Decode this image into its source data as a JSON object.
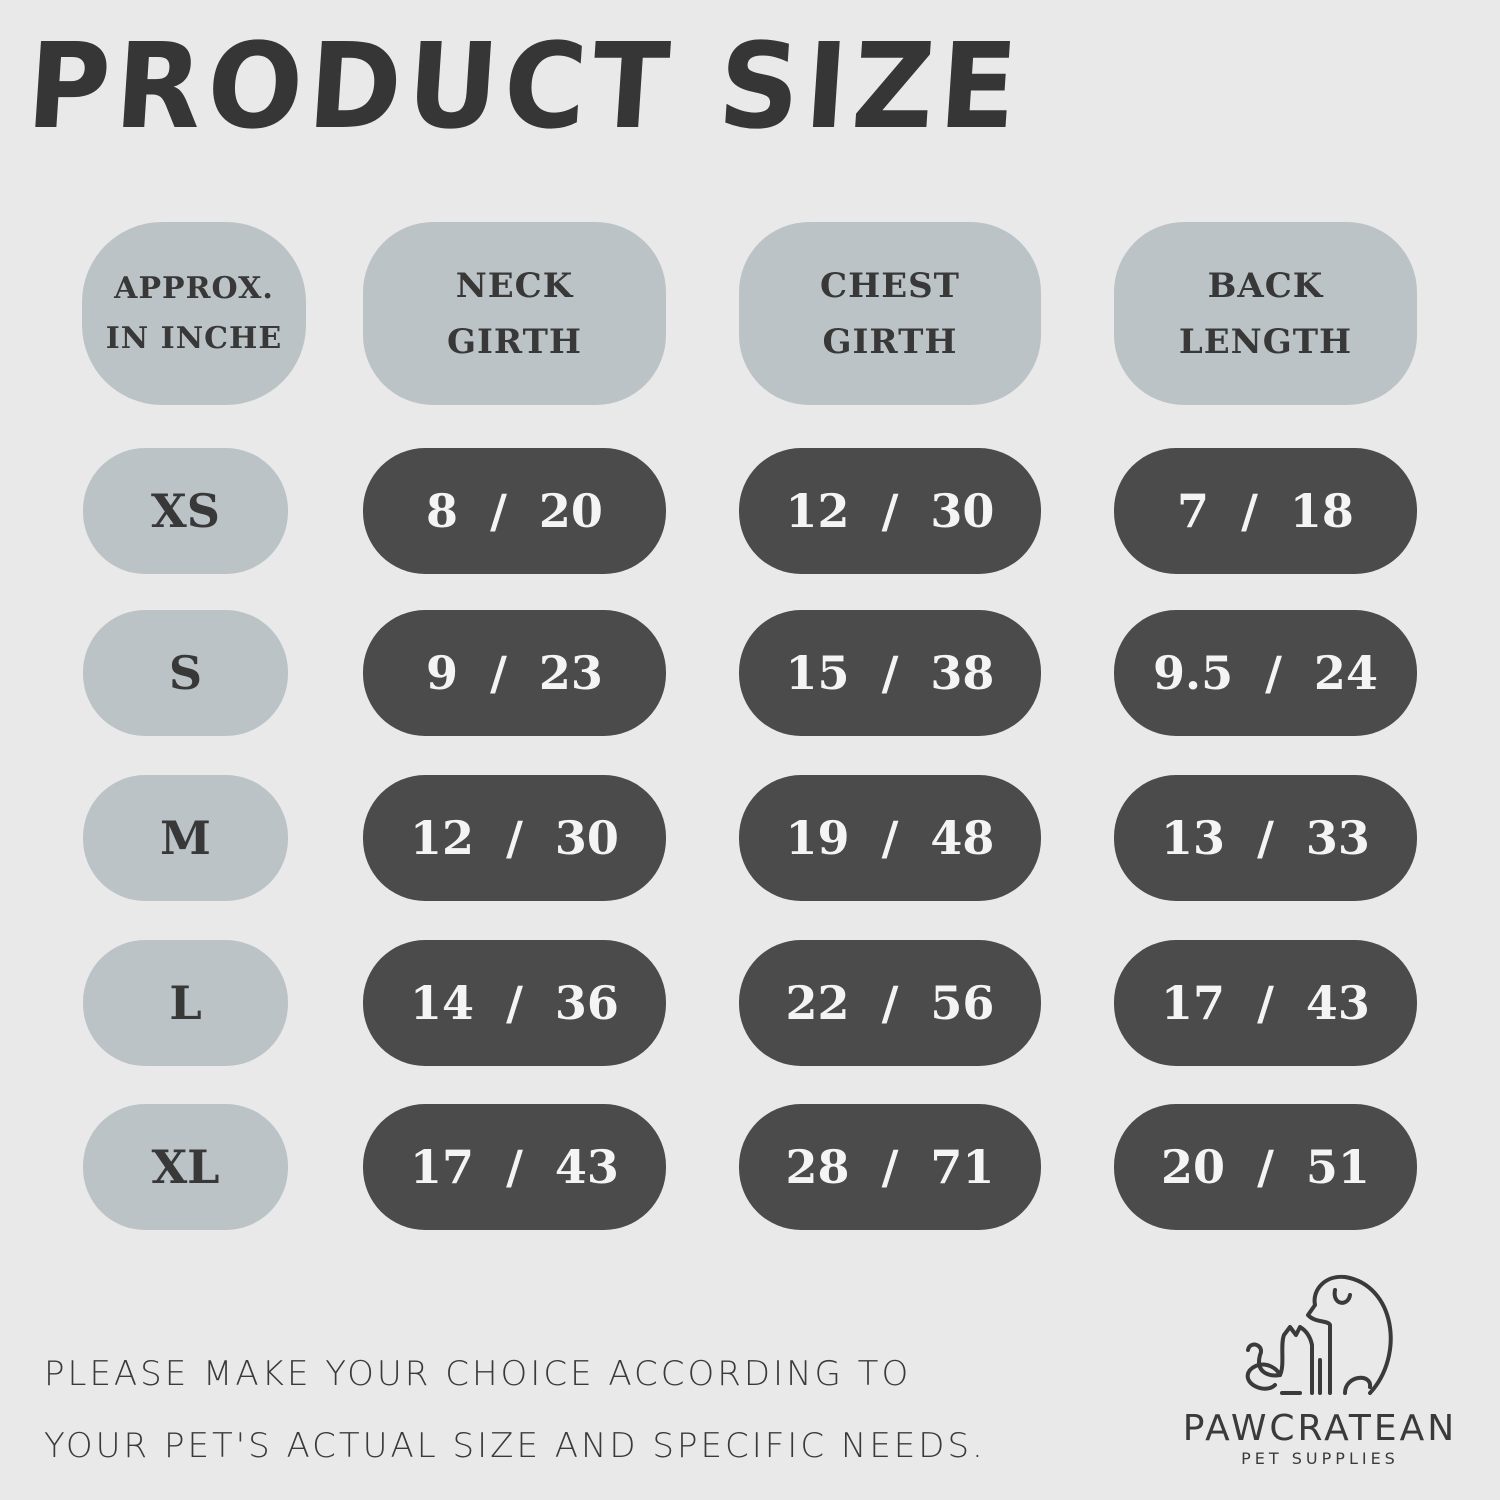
{
  "title": "PRODUCT SIZE",
  "headers": [
    "APPROX.\nIN INCHE",
    "NECK\nGIRTH",
    "CHEST\nGIRTH",
    "BACK\nLENGTH"
  ],
  "rows": [
    {
      "size": "XS",
      "neck": "8  /  20",
      "chest": "12  /  30",
      "back": "7  /  18"
    },
    {
      "size": "S",
      "neck": "9  /  23",
      "chest": "15  /  38",
      "back": "9.5  /  24"
    },
    {
      "size": "M",
      "neck": "12  /  30",
      "chest": "19  /  48",
      "back": "13  /  33"
    },
    {
      "size": "L",
      "neck": "14  /  36",
      "chest": "22  /  56",
      "back": "17  /  43"
    },
    {
      "size": "XL",
      "neck": "17  /  43",
      "chest": "28  /  71",
      "back": "20  /  51"
    }
  ],
  "note": {
    "line1": "PLEASE MAKE YOUR CHOICE ACCORDING TO",
    "line2": "YOUR PET'S ACTUAL SIZE AND SPECIFIC NEEDS."
  },
  "logo": {
    "brand": "PAWCRATEAN",
    "subtitle": "PET SUPPLIES",
    "icon": "dog-and-cat-outline-icon"
  },
  "colors": {
    "background": "#e9e9e9",
    "light_pill": "#bcc3c6",
    "dark_pill": "#4b4b4b",
    "text": "#3b3b3b"
  }
}
